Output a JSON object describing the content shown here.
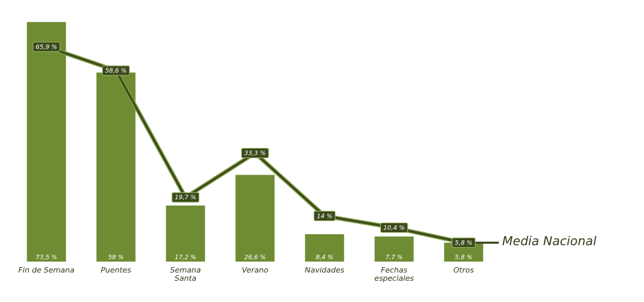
{
  "chart_data": {
    "type": "bar",
    "categories": [
      "Fin de Semana",
      "Puentes",
      "Semana\nSanta",
      "Verano",
      "Navidades",
      "Fechas\nespeciales",
      "Otros"
    ],
    "series": [
      {
        "color": "#6f8c33",
        "values": [
          73.5,
          58,
          17.2,
          26.6,
          8.4,
          7.7,
          5.8
        ],
        "value_labels": [
          "73,5 %",
          "58 %",
          "17,2 %",
          "26,6 %",
          "8,4  %",
          "7,7 %",
          "5.8 %"
        ]
      },
      {
        "name": "Media Nacional",
        "type": "line",
        "color": "#3b4a1c",
        "values": [
          65.9,
          58.6,
          19.7,
          33.3,
          14,
          10.4,
          5.8
        ],
        "value_labels": [
          "65,9 %",
          "58,6 %",
          "19,7 %",
          "33,3 %",
          "14 %",
          "10,4 %",
          "5,8  %"
        ]
      }
    ],
    "ylim": [
      0,
      75
    ]
  }
}
